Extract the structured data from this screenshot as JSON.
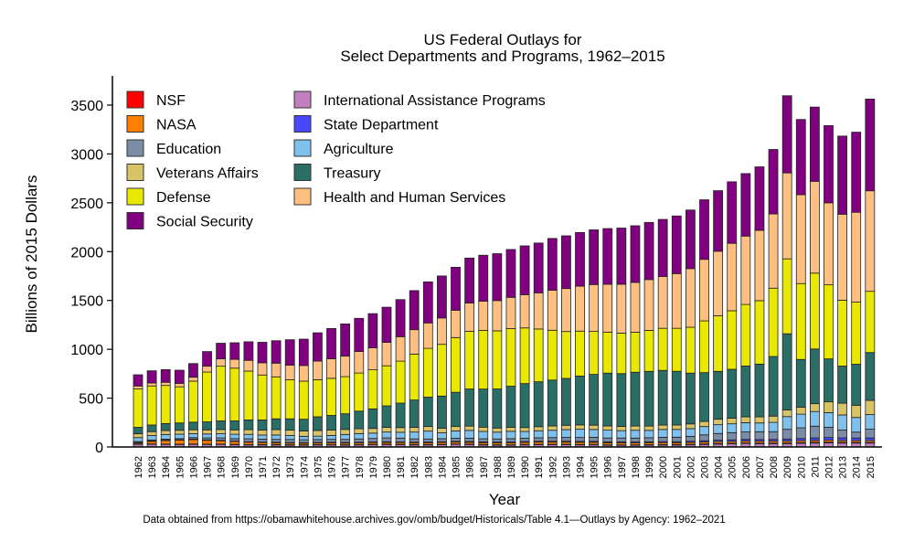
{
  "chart_data": {
    "type": "bar",
    "stacked": true,
    "title": "US Federal Outlays for",
    "subtitle": "Select Departments and Programs, 1962–2015",
    "xlabel": "Year",
    "ylabel": "Billions of 2015 Dollars",
    "ylim": [
      0,
      3700
    ],
    "yticks": [
      0,
      500,
      1000,
      1500,
      2000,
      2500,
      3000,
      3500
    ],
    "grid": false,
    "legend_placement": "top-left",
    "footnote": "Data obtained from https://obamawhitehouse.archives.gov/omb/budget/Historicals/Table 4.1—Outlays by Agency: 1962–2021",
    "categories": [
      "1962",
      "1963",
      "1964",
      "1965",
      "1966",
      "1967",
      "1968",
      "1969",
      "1970",
      "1971",
      "1972",
      "1973",
      "1974",
      "1975",
      "1976",
      "1977",
      "1978",
      "1979",
      "1980",
      "1981",
      "1982",
      "1983",
      "1984",
      "1985",
      "1986",
      "1987",
      "1988",
      "1989",
      "1990",
      "1991",
      "1992",
      "1993",
      "1994",
      "1995",
      "1996",
      "1997",
      "1998",
      "1999",
      "2000",
      "2001",
      "2002",
      "2003",
      "2004",
      "2005",
      "2006",
      "2007",
      "2008",
      "2009",
      "2010",
      "2011",
      "2012",
      "2013",
      "2014",
      "2015"
    ],
    "series": [
      {
        "name": "International Assistance Programs",
        "color": "#c080c0",
        "values": [
          30,
          30,
          28,
          27,
          28,
          27,
          27,
          24,
          22,
          22,
          22,
          20,
          20,
          22,
          22,
          20,
          22,
          24,
          26,
          24,
          22,
          22,
          24,
          28,
          26,
          22,
          20,
          20,
          22,
          24,
          24,
          24,
          22,
          22,
          18,
          18,
          18,
          20,
          20,
          20,
          22,
          26,
          30,
          32,
          36,
          34,
          34,
          35,
          38,
          40,
          42,
          40,
          40,
          40
        ]
      },
      {
        "name": "NSF",
        "color": "#ff0000",
        "values": [
          1,
          2,
          2,
          2,
          3,
          3,
          3,
          3,
          3,
          3,
          3,
          3,
          3,
          3,
          3,
          3,
          3,
          3,
          3,
          3,
          3,
          3,
          3,
          3,
          3,
          3,
          3,
          3,
          4,
          4,
          4,
          4,
          4,
          4,
          4,
          4,
          4,
          4,
          5,
          5,
          5,
          6,
          6,
          6,
          6,
          6,
          6,
          7,
          7,
          8,
          8,
          7,
          7,
          7
        ]
      },
      {
        "name": "NASA",
        "color": "#ff7f00",
        "values": [
          10,
          25,
          35,
          40,
          45,
          38,
          33,
          28,
          24,
          20,
          18,
          17,
          16,
          16,
          17,
          17,
          17,
          18,
          18,
          18,
          18,
          18,
          19,
          19,
          19,
          19,
          19,
          20,
          21,
          22,
          22,
          22,
          22,
          22,
          21,
          21,
          20,
          20,
          20,
          19,
          19,
          19,
          19,
          19,
          19,
          19,
          19,
          19,
          19,
          19,
          19,
          18,
          18,
          18
        ]
      },
      {
        "name": "State Department",
        "color": "#4848ff",
        "values": [
          5,
          5,
          5,
          5,
          5,
          5,
          5,
          5,
          5,
          5,
          5,
          5,
          5,
          5,
          6,
          6,
          6,
          6,
          6,
          6,
          6,
          7,
          7,
          7,
          8,
          8,
          8,
          8,
          8,
          8,
          8,
          8,
          9,
          9,
          9,
          9,
          9,
          9,
          10,
          10,
          12,
          13,
          15,
          16,
          17,
          17,
          18,
          20,
          22,
          26,
          28,
          28,
          27,
          27
        ]
      },
      {
        "name": "Education",
        "color": "#7a8ca6",
        "values": [
          10,
          10,
          10,
          12,
          15,
          20,
          25,
          25,
          30,
          30,
          30,
          32,
          30,
          30,
          30,
          32,
          34,
          36,
          40,
          40,
          34,
          32,
          32,
          32,
          34,
          32,
          32,
          34,
          34,
          36,
          38,
          40,
          40,
          42,
          40,
          40,
          40,
          42,
          44,
          46,
          50,
          60,
          68,
          74,
          76,
          80,
          80,
          100,
          110,
          120,
          105,
          80,
          60,
          90
        ]
      },
      {
        "name": "Agriculture",
        "color": "#80c0ec",
        "values": [
          40,
          45,
          48,
          45,
          40,
          40,
          42,
          45,
          45,
          42,
          45,
          40,
          35,
          35,
          40,
          50,
          55,
          55,
          60,
          60,
          70,
          80,
          60,
          75,
          80,
          75,
          70,
          75,
          70,
          72,
          75,
          80,
          85,
          80,
          80,
          75,
          80,
          75,
          80,
          80,
          80,
          85,
          90,
          90,
          95,
          90,
          95,
          130,
          140,
          150,
          150,
          155,
          150,
          150
        ]
      },
      {
        "name": "Veterans Affairs",
        "color": "#d8c466",
        "values": [
          40,
          40,
          40,
          40,
          40,
          42,
          44,
          45,
          48,
          50,
          55,
          56,
          55,
          58,
          55,
          52,
          50,
          48,
          48,
          48,
          48,
          48,
          46,
          46,
          44,
          44,
          42,
          42,
          40,
          42,
          44,
          44,
          44,
          44,
          44,
          44,
          44,
          44,
          45,
          45,
          48,
          52,
          56,
          58,
          60,
          62,
          64,
          68,
          70,
          80,
          110,
          120,
          125,
          145
        ]
      },
      {
        "name": "Treasury",
        "color": "#2a6e66",
        "values": [
          65,
          68,
          72,
          75,
          78,
          82,
          88,
          92,
          100,
          105,
          110,
          115,
          120,
          140,
          150,
          160,
          180,
          200,
          220,
          250,
          280,
          300,
          330,
          350,
          380,
          390,
          400,
          420,
          450,
          460,
          470,
          480,
          500,
          520,
          540,
          540,
          550,
          560,
          560,
          550,
          520,
          500,
          490,
          500,
          520,
          540,
          610,
          780,
          490,
          560,
          440,
          380,
          420,
          490
        ]
      },
      {
        "name": "Defense",
        "color": "#e8e800",
        "values": [
          393,
          400,
          390,
          370,
          420,
          510,
          560,
          540,
          500,
          460,
          430,
          400,
          390,
          380,
          380,
          380,
          390,
          400,
          410,
          430,
          470,
          500,
          530,
          560,
          590,
          600,
          595,
          590,
          570,
          540,
          510,
          480,
          460,
          440,
          420,
          415,
          410,
          420,
          431,
          440,
          470,
          530,
          570,
          600,
          630,
          650,
          700,
          767,
          777,
          777,
          758,
          675,
          636,
          627
        ]
      },
      {
        "name": "Health and Human Services",
        "color": "#ffbf80",
        "values": [
          30,
          30,
          32,
          35,
          40,
          60,
          75,
          90,
          110,
          125,
          140,
          150,
          160,
          190,
          200,
          210,
          220,
          225,
          240,
          250,
          250,
          260,
          270,
          280,
          290,
          300,
          310,
          320,
          340,
          370,
          410,
          440,
          460,
          480,
          490,
          500,
          510,
          520,
          530,
          560,
          600,
          630,
          660,
          690,
          700,
          720,
          760,
          880,
          910,
          940,
          840,
          880,
          920,
          1029
        ]
      },
      {
        "name": "Social Security",
        "color": "#800080",
        "values": [
          115,
          125,
          130,
          135,
          140,
          150,
          160,
          170,
          190,
          210,
          230,
          260,
          270,
          290,
          310,
          330,
          340,
          350,
          360,
          380,
          400,
          420,
          430,
          440,
          460,
          470,
          480,
          490,
          500,
          510,
          530,
          540,
          550,
          560,
          570,
          575,
          580,
          585,
          585,
          590,
          600,
          610,
          620,
          630,
          640,
          650,
          660,
          790,
          770,
          760,
          790,
          800,
          820,
          939
        ]
      }
    ],
    "legend_order": [
      "NSF",
      "NASA",
      "Education",
      "Veterans Affairs",
      "Defense",
      "Social Security",
      "International Assistance Programs",
      "State Department",
      "Agriculture",
      "Treasury",
      "Health and Human Services"
    ]
  }
}
